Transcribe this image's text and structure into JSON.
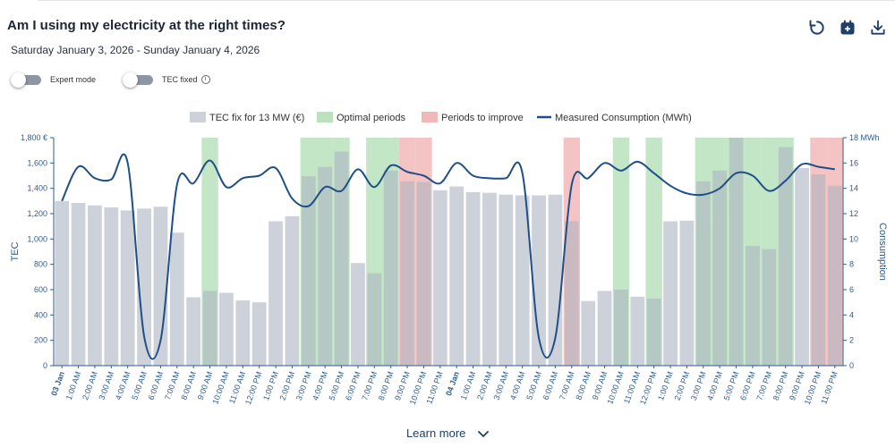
{
  "header": {
    "title": "Am I using my electricity at the right times?",
    "date_range": "Saturday January 3, 2026 - Sunday January 4, 2026",
    "actions": [
      "reset-icon",
      "calendar-icon",
      "download-icon"
    ]
  },
  "toggles": [
    {
      "label": "Expert mode",
      "on": false
    },
    {
      "label": "TEC fixed",
      "on": false
    }
  ],
  "footer": {
    "learn_more": "Learn more"
  },
  "colors": {
    "bar": "#cdd1da",
    "optimal": "#b9e2bd",
    "improve": "#f2b8b8",
    "line": "#1f4f86",
    "axis": "#2e5d8e"
  },
  "chart_data": {
    "type": "bar",
    "legend": [
      "TEC fix for 13 MW (€)",
      "Optimal periods",
      "Periods to improve",
      "Measured Consumption (MWh)"
    ],
    "ylabel": "TEC",
    "ylabel_right": "Consumption",
    "ylim": [
      0,
      1800
    ],
    "ylim_right": [
      0,
      18
    ],
    "yticks": [
      "0",
      "200",
      "400",
      "600",
      "800",
      "1,000",
      "1,200",
      "1,400",
      "1,600",
      "1,800 €"
    ],
    "yticks_right": [
      "0",
      "2",
      "4",
      "6",
      "8",
      "10",
      "12",
      "14",
      "16",
      "18 MWh"
    ],
    "categories": [
      "03 Jan",
      "1:00 AM",
      "2:00 AM",
      "3:00 AM",
      "4:00 AM",
      "5:00 AM",
      "6:00 AM",
      "7:00 AM",
      "8:00 AM",
      "9:00 AM",
      "10:00 AM",
      "11:00 AM",
      "12:00 PM",
      "1:00 PM",
      "2:00 PM",
      "3:00 PM",
      "4:00 PM",
      "5:00 PM",
      "6:00 PM",
      "7:00 PM",
      "8:00 PM",
      "9:00 PM",
      "10:00 PM",
      "11:00 PM",
      "04 Jan",
      "1:00 AM",
      "2:00 AM",
      "3:00 AM",
      "4:00 AM",
      "5:00 AM",
      "6:00 AM",
      "7:00 AM",
      "8:00 AM",
      "9:00 AM",
      "10:00 AM",
      "11:00 AM",
      "12:00 PM",
      "1:00 PM",
      "2:00 PM",
      "3:00 PM",
      "4:00 PM",
      "5:00 PM",
      "6:00 PM",
      "7:00 PM",
      "8:00 PM",
      "9:00 PM",
      "10:00 PM",
      "11:00 PM"
    ],
    "tec_values": [
      1300,
      1285,
      1265,
      1250,
      1225,
      1240,
      1255,
      1050,
      540,
      590,
      575,
      515,
      500,
      1140,
      1180,
      1495,
      1570,
      1690,
      810,
      730,
      1540,
      1455,
      1450,
      1385,
      1415,
      1370,
      1365,
      1350,
      1345,
      1345,
      1350,
      1140,
      510,
      590,
      600,
      545,
      530,
      1140,
      1145,
      1455,
      1540,
      1800,
      945,
      920,
      1725,
      1560,
      1510,
      1420
    ],
    "consumption": [
      13.0,
      15.7,
      14.8,
      14.7,
      16.0,
      2.3,
      2.0,
      14.3,
      14.4,
      16.2,
      14.1,
      14.8,
      15.0,
      15.6,
      13.2,
      12.6,
      14.1,
      13.8,
      15.5,
      14.1,
      15.8,
      15.3,
      15.0,
      14.4,
      16.0,
      15.0,
      14.8,
      14.8,
      15.2,
      2.2,
      2.2,
      14.3,
      14.8,
      16.0,
      15.4,
      16.1,
      15.2,
      14.2,
      13.6,
      13.5,
      14.0,
      15.2,
      15.0,
      13.8,
      14.6,
      15.9,
      15.7,
      15.5
    ],
    "optimal_periods": [
      9,
      15,
      16,
      17,
      19,
      20,
      34,
      36,
      39,
      40,
      41,
      42,
      43,
      44
    ],
    "improve_periods": [
      21,
      22,
      31,
      46,
      47
    ]
  }
}
